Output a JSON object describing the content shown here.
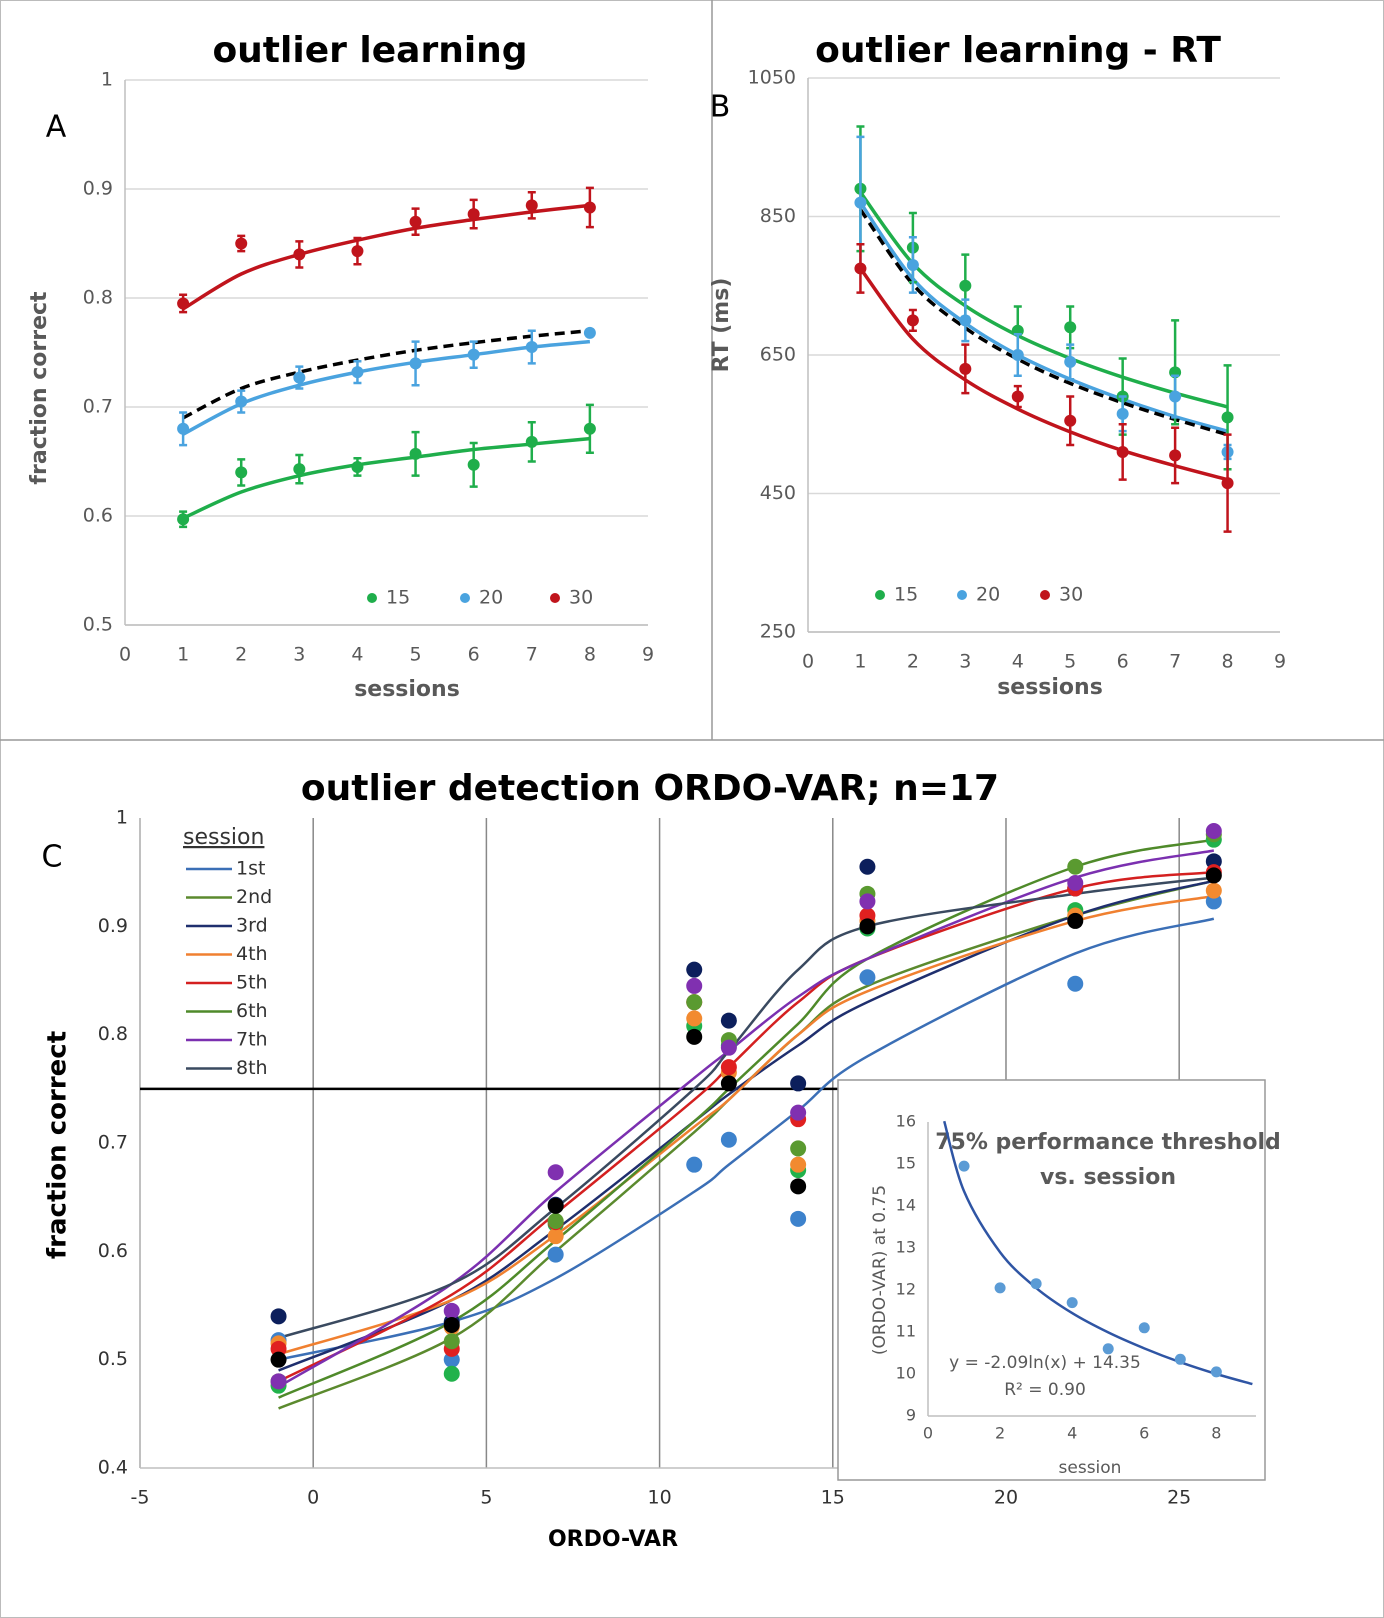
{
  "chart_data": [
    {
      "type": "scatter",
      "title": "outlier learning",
      "panel_label": "A",
      "xlabel": "sessions",
      "ylabel": "fraction correct",
      "x": [
        1,
        2,
        3,
        4,
        5,
        6,
        7,
        8
      ],
      "xlim": [
        0,
        9
      ],
      "xticks": [
        0,
        1,
        2,
        3,
        4,
        5,
        6,
        7,
        8,
        9
      ],
      "ylim": [
        0.5,
        1
      ],
      "yticks": [
        0.5,
        0.6,
        0.7,
        0.8,
        0.9,
        1
      ],
      "grid": "y",
      "series": [
        {
          "name": "15",
          "color": "#1fae4b",
          "values": [
            0.597,
            0.64,
            0.643,
            0.645,
            0.657,
            0.647,
            0.668,
            0.68
          ],
          "errors": [
            0.007,
            0.012,
            0.013,
            0.008,
            0.02,
            0.02,
            0.018,
            0.022
          ],
          "fit": [
            0.598,
            0.622,
            0.637,
            0.647,
            0.654,
            0.661,
            0.666,
            0.671
          ]
        },
        {
          "name": "20",
          "color": "#4aa3df",
          "values": [
            0.68,
            0.705,
            0.727,
            0.732,
            0.74,
            0.748,
            0.755,
            0.768
          ],
          "errors": [
            0.015,
            0.01,
            0.01,
            0.01,
            0.02,
            0.012,
            0.015,
            0.003
          ],
          "fit": [
            0.675,
            0.703,
            0.72,
            0.732,
            0.741,
            0.748,
            0.755,
            0.76
          ]
        },
        {
          "name": "30",
          "color": "#c0141c",
          "values": [
            0.795,
            0.85,
            0.84,
            0.843,
            0.87,
            0.877,
            0.885,
            0.883
          ],
          "errors": [
            0.008,
            0.007,
            0.012,
            0.012,
            0.012,
            0.013,
            0.012,
            0.018
          ],
          "fit": [
            0.79,
            0.822,
            0.84,
            0.853,
            0.864,
            0.872,
            0.879,
            0.885
          ]
        }
      ],
      "average_fit": {
        "color": "#000000",
        "values": [
          0.69,
          0.717,
          0.732,
          0.743,
          0.752,
          0.759,
          0.765,
          0.77
        ]
      }
    },
    {
      "type": "scatter",
      "title": "outlier learning - RT",
      "panel_label": "B",
      "xlabel": "sessions",
      "ylabel": "RT (ms)",
      "x": [
        1,
        2,
        3,
        4,
        5,
        6,
        7,
        8
      ],
      "xlim": [
        0,
        9
      ],
      "xticks": [
        0,
        1,
        2,
        3,
        4,
        5,
        6,
        7,
        8,
        9
      ],
      "ylim": [
        250,
        1050
      ],
      "yticks": [
        250,
        450,
        650,
        850,
        1050
      ],
      "grid": "y",
      "series": [
        {
          "name": "15",
          "color": "#1fae4b",
          "values": [
            890,
            805,
            750,
            685,
            690,
            590,
            625,
            560
          ],
          "errors": [
            90,
            50,
            45,
            35,
            30,
            55,
            75,
            75
          ],
          "fit": [
            885,
            782,
            721,
            678,
            645,
            618,
            595,
            575
          ]
        },
        {
          "name": "20",
          "color": "#4aa3df",
          "values": [
            870,
            780,
            700,
            650,
            640,
            565,
            590,
            510
          ],
          "errors": [
            95,
            40,
            30,
            30,
            25,
            25,
            30,
            10
          ],
          "fit": [
            870,
            760,
            696,
            650,
            615,
            586,
            561,
            540
          ]
        },
        {
          "name": "30",
          "color": "#c0141c",
          "values": [
            775,
            700,
            630,
            590,
            555,
            510,
            505,
            465
          ],
          "errors": [
            35,
            15,
            35,
            15,
            35,
            40,
            40,
            70
          ],
          "fit": [
            775,
            673,
            614,
            572,
            539,
            512,
            490,
            470
          ]
        }
      ],
      "average_fit": {
        "color": "#000000",
        "values": [
          860,
          752,
          689,
          644,
          609,
          581,
          557,
          535
        ]
      }
    },
    {
      "type": "line",
      "title": "outlier detection ORDO-VAR; n=17",
      "panel_label": "C",
      "xlabel": "ORDO-VAR",
      "ylabel": "fraction correct",
      "legend_title": "session",
      "x": [
        -1,
        4,
        7,
        11,
        12,
        14,
        16,
        22,
        26
      ],
      "xlim": [
        -5,
        26.9
      ],
      "xticks": [
        -5,
        0,
        5,
        10,
        15,
        20,
        25
      ],
      "ylim": [
        0.4,
        1
      ],
      "yticks": [
        0.4,
        0.5,
        0.6,
        0.7,
        0.8,
        0.9,
        1
      ],
      "grid": "x",
      "threshold": 0.75,
      "series": [
        {
          "name": "1st",
          "color": "#3b6fb6",
          "marker_color": "#3d82cc",
          "values": [
            0.518,
            0.5,
            0.597,
            0.68,
            0.703,
            0.63,
            0.853,
            0.847,
            0.923
          ],
          "fit": [
            0.5,
            0.535,
            0.575,
            0.655,
            0.68,
            0.73,
            0.78,
            0.875,
            0.907
          ]
        },
        {
          "name": "2nd",
          "color": "#5b8a2e",
          "marker_color": "#21b24b",
          "values": [
            0.476,
            0.487,
            0.625,
            0.808,
            0.79,
            0.675,
            0.898,
            0.915,
            0.98
          ],
          "fit": [
            0.455,
            0.52,
            0.6,
            0.71,
            0.74,
            0.8,
            0.845,
            0.91,
            0.942
          ]
        },
        {
          "name": "3rd",
          "color": "#1f2f6e",
          "marker_color": "#0c1f5c",
          "values": [
            0.54,
            0.535,
            0.643,
            0.86,
            0.813,
            0.755,
            0.955,
            0.935,
            0.96
          ],
          "fit": [
            0.49,
            0.555,
            0.62,
            0.72,
            0.745,
            0.79,
            0.83,
            0.91,
            0.942
          ]
        },
        {
          "name": "4th",
          "color": "#f08030",
          "marker_color": "#f28a30",
          "values": [
            0.515,
            0.53,
            0.614,
            0.815,
            0.765,
            0.68,
            0.905,
            0.91,
            0.933
          ],
          "fit": [
            0.505,
            0.555,
            0.615,
            0.715,
            0.74,
            0.8,
            0.84,
            0.905,
            0.928
          ]
        },
        {
          "name": "5th",
          "color": "#d42020",
          "marker_color": "#e02020",
          "values": [
            0.51,
            0.51,
            0.627,
            0.83,
            0.77,
            0.722,
            0.91,
            0.935,
            0.95
          ],
          "fit": [
            0.48,
            0.56,
            0.635,
            0.74,
            0.77,
            0.83,
            0.87,
            0.935,
            0.95
          ]
        },
        {
          "name": "6th",
          "color": "#4f8a2a",
          "marker_color": "#5a9a30",
          "values": [
            0.48,
            0.517,
            0.628,
            0.83,
            0.795,
            0.695,
            0.93,
            0.955,
            0.985
          ],
          "fit": [
            0.465,
            0.535,
            0.61,
            0.72,
            0.75,
            0.81,
            0.87,
            0.955,
            0.98
          ]
        },
        {
          "name": "7th",
          "color": "#7b30b0",
          "marker_color": "#8030b0",
          "values": [
            0.48,
            0.545,
            0.673,
            0.845,
            0.788,
            0.728,
            0.923,
            0.94,
            0.988
          ],
          "fit": [
            0.475,
            0.57,
            0.655,
            0.76,
            0.785,
            0.835,
            0.87,
            0.945,
            0.97
          ]
        },
        {
          "name": "8th",
          "color": "#3a4a60",
          "marker_color": "#000000",
          "values": [
            0.5,
            0.532,
            0.642,
            0.798,
            0.755,
            0.66,
            0.9,
            0.905,
            0.947
          ],
          "fit": [
            0.52,
            0.57,
            0.64,
            0.75,
            0.785,
            0.86,
            0.9,
            0.93,
            0.945
          ]
        }
      ]
    },
    {
      "type": "scatter",
      "title": [
        "75% performance threshold",
        "vs. session"
      ],
      "xlabel": "session",
      "ylabel": "(ORDO-VAR) at 0.75",
      "annotations": [
        "y = -2.09ln(x) + 14.35",
        "R² = 0.90"
      ],
      "x": [
        1,
        2,
        3,
        4,
        5,
        6,
        7,
        8
      ],
      "values": [
        14.95,
        12.05,
        12.15,
        11.7,
        10.6,
        11.1,
        10.35,
        10.05
      ],
      "color": "#5b9bd5",
      "xlim": [
        0,
        9.1
      ],
      "xticks": [
        0,
        2,
        4,
        6,
        8
      ],
      "ylim": [
        9,
        16
      ],
      "yticks": [
        9,
        10,
        11,
        12,
        13,
        14,
        15,
        16
      ],
      "fit": {
        "color": "#2f55a4",
        "x": [
          0.45,
          1,
          2,
          3,
          4,
          5,
          6,
          7,
          8,
          9
        ],
        "values": [
          16.02,
          14.35,
          12.9,
          12.05,
          11.45,
          10.99,
          10.61,
          10.28,
          10.0,
          9.76
        ]
      }
    }
  ]
}
